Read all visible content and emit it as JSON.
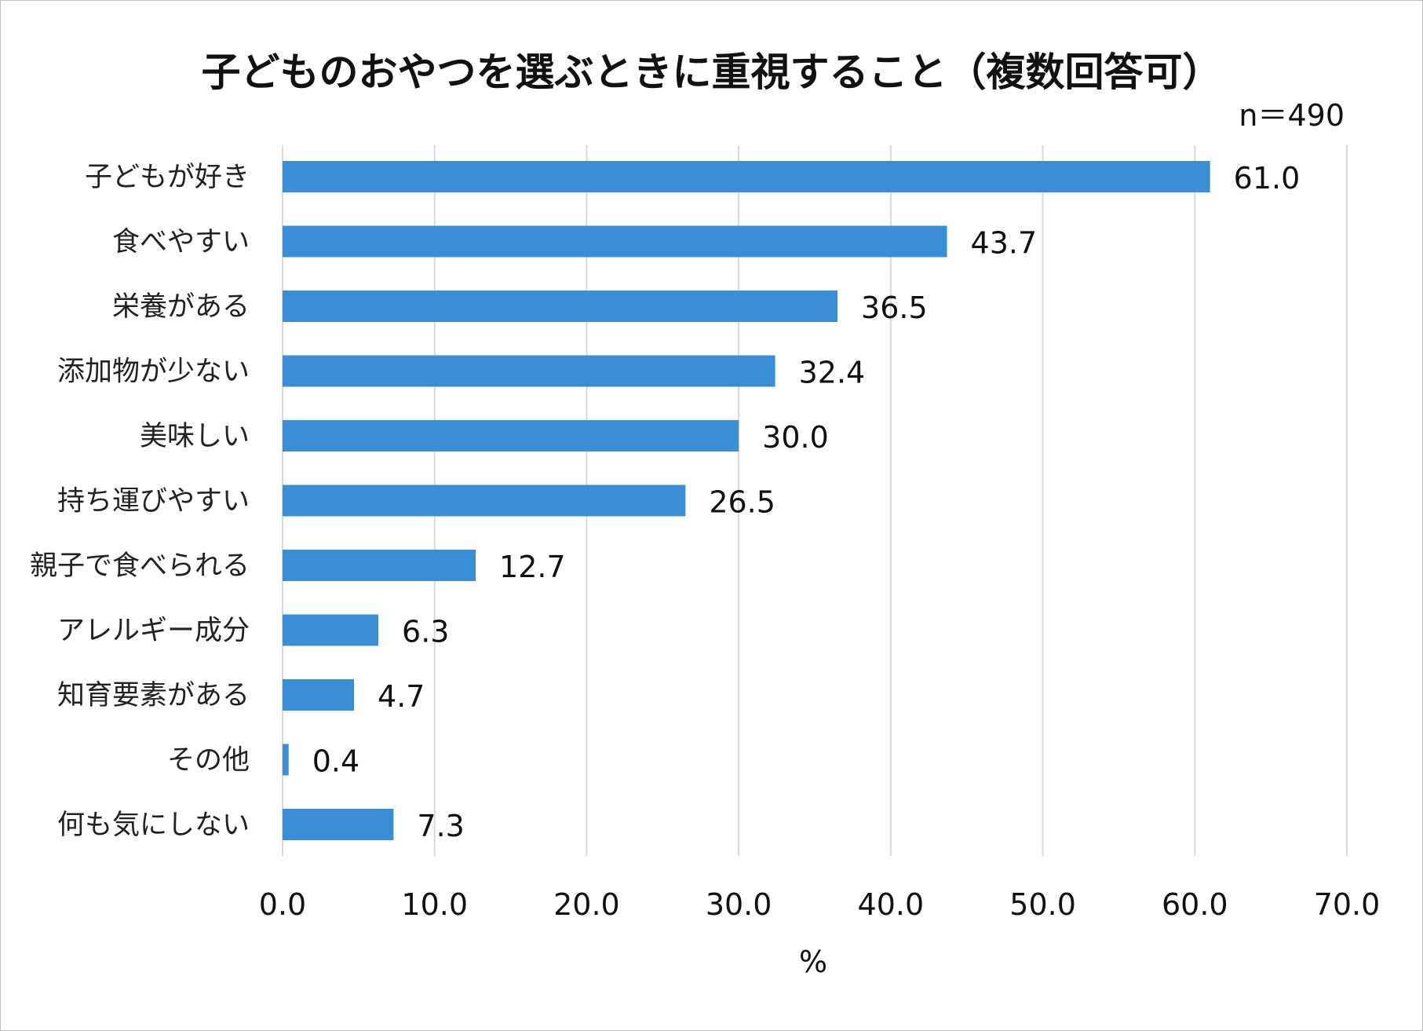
{
  "chart_data": {
    "type": "bar",
    "orientation": "horizontal",
    "title": "子どものおやつを選ぶときに重視すること（複数回答可）",
    "sample_size": "n＝490",
    "categories": [
      "子どもが好き",
      "食べやすい",
      "栄養がある",
      "添加物が少ない",
      "美味しい",
      "持ち運びやすい",
      "親子で食べられる",
      "アレルギー成分",
      "知育要素がある",
      "その他",
      "何も気にしない"
    ],
    "values": [
      61.0,
      43.7,
      36.5,
      32.4,
      30.0,
      26.5,
      12.7,
      6.3,
      4.7,
      0.4,
      7.3
    ],
    "value_labels": [
      "61.0",
      "43.7",
      "36.5",
      "32.4",
      "30.0",
      "26.5",
      "12.7",
      "6.3",
      "4.7",
      "0.4",
      "7.3"
    ],
    "xlabel": "%",
    "xlim": [
      0,
      70
    ],
    "xticks": [
      "0.0",
      "10.0",
      "20.0",
      "30.0",
      "40.0",
      "50.0",
      "60.0",
      "70.0"
    ],
    "grid": true,
    "bar_color": "#3a8ed6",
    "grid_color": "#d9d9d9"
  }
}
